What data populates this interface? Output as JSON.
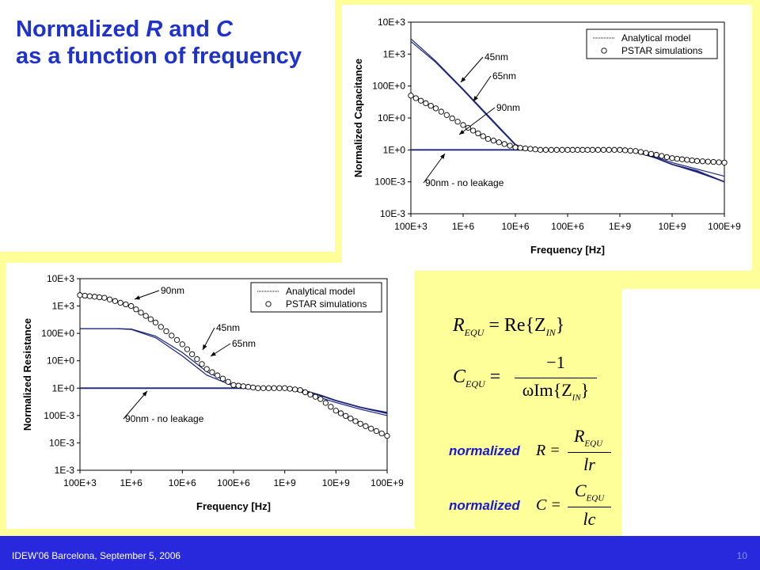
{
  "slide": {
    "title_lines": [
      "Normalized",
      "R",
      "and",
      "C",
      "as a function of frequency"
    ],
    "footer": "IDEW'06 Barcelona, September 5, 2006",
    "page_number": "10",
    "colors": {
      "title": "#1f33cc",
      "footer_bg": "#2828dd",
      "highlight": "#ffff99",
      "curve": "#1a237e"
    }
  },
  "equations": {
    "r_equ": {
      "lhs": "R",
      "lhs_sub": "EQU",
      "rhs": "= Re{Z",
      "rhs_sub": "IN",
      "close": "}"
    },
    "c_equ": {
      "lhs": "C",
      "lhs_sub": "EQU",
      "eq": "=",
      "num": "−1",
      "den": "ωIm{Z",
      "den_sub": "IN",
      "den_close": "}"
    },
    "norm_r": {
      "word": "normalized",
      "var": "R =",
      "num": "R",
      "num_sub": "EQU",
      "den": "lr"
    },
    "norm_c": {
      "word": "normalized",
      "var": "C =",
      "num": "C",
      "num_sub": "EQU",
      "den": "lc"
    }
  },
  "chart_data": [
    {
      "type": "line",
      "id": "capacitance",
      "xlabel": "Frequency [Hz]",
      "ylabel": "Normalized Capacitance",
      "x_scale": "log",
      "y_scale": "log",
      "xlim": [
        100000.0,
        100000000000.0
      ],
      "ylim": [
        0.01,
        10000
      ],
      "x_ticks": [
        100000.0,
        1000000.0,
        10000000.0,
        100000000.0,
        1000000000.0,
        10000000000.0,
        100000000000.0
      ],
      "x_tick_labels": [
        "100E+3",
        "1E+6",
        "10E+6",
        "100E+6",
        "1E+9",
        "10E+9",
        "100E+9"
      ],
      "y_ticks": [
        10000,
        1000,
        100,
        10,
        1,
        0.1,
        0.01
      ],
      "y_tick_labels": [
        "10E+3",
        "1E+3",
        "100E+0",
        "10E+0",
        "1E+0",
        "100E-3",
        "10E-3"
      ],
      "legend": {
        "position": "top-right",
        "entries": [
          "Analytical model",
          "PSTAR simulations"
        ]
      },
      "annotations": [
        "45nm",
        "65nm",
        "90nm",
        "90nm - no leakage"
      ],
      "series": [
        {
          "kind": "line",
          "x": [
            100000.0,
            300000.0,
            1000000.0,
            3000000.0,
            10000000.0,
            15000000.0,
            20000000.0,
            100000000.0,
            1000000000.0,
            2000000000.0,
            5000000000.0,
            10000000000.0,
            30000000000.0,
            100000000000.0
          ],
          "y": [
            3000,
            600,
            80,
            12,
            1.5,
            1.08,
            1.0,
            1.0,
            1.0,
            0.9,
            0.6,
            0.4,
            0.25,
            0.15
          ]
        },
        {
          "kind": "line",
          "x": [
            100000.0,
            300000.0,
            1000000.0,
            3000000.0,
            10000000.0,
            20000000.0,
            100000000.0,
            1000000000.0,
            2000000000.0,
            5000000000.0,
            10000000000.0,
            30000000000.0,
            100000000000.0
          ],
          "y": [
            2500,
            550,
            75,
            11,
            1.4,
            1.0,
            1.0,
            1.0,
            0.85,
            0.55,
            0.35,
            0.2,
            0.1
          ]
        },
        {
          "kind": "line",
          "x": [
            100000.0,
            100000000.0,
            1000000000.0,
            2000000000.0,
            5000000000.0,
            10000000000.0,
            30000000000.0,
            100000000000.0
          ],
          "y": [
            1.0,
            1.0,
            1.0,
            0.9,
            0.55,
            0.35,
            0.22,
            0.1
          ]
        },
        {
          "kind": "markers",
          "x": [
            100000.0,
            300000.0,
            1000000.0,
            3000000.0,
            10000000.0,
            30000000.0,
            100000000.0,
            300000000.0,
            1000000000.0,
            2000000000.0,
            5000000000.0,
            10000000000.0,
            30000000000.0,
            100000000000.0
          ],
          "y": [
            50,
            20,
            6,
            2.2,
            1.2,
            1.0,
            1.0,
            1.0,
            1.0,
            0.92,
            0.7,
            0.55,
            0.45,
            0.4
          ]
        }
      ]
    },
    {
      "type": "line",
      "id": "resistance",
      "xlabel": "Frequency [Hz]",
      "ylabel": "Normalized Resistance",
      "x_scale": "log",
      "y_scale": "log",
      "xlim": [
        100000.0,
        100000000000.0
      ],
      "ylim": [
        0.001,
        10000
      ],
      "x_ticks": [
        100000.0,
        1000000.0,
        10000000.0,
        100000000.0,
        1000000000.0,
        10000000000.0,
        100000000000.0
      ],
      "x_tick_labels": [
        "100E+3",
        "1E+6",
        "10E+6",
        "100E+6",
        "1E+9",
        "10E+9",
        "100E+9"
      ],
      "y_ticks": [
        10000,
        1000,
        100,
        10,
        1,
        0.1,
        0.01,
        0.001
      ],
      "y_tick_labels": [
        "10E+3",
        "1E+3",
        "100E+0",
        "10E+0",
        "1E+0",
        "100E-3",
        "10E-3",
        "1E-3"
      ],
      "legend": {
        "position": "top-right",
        "entries": [
          "Analytical model",
          "PSTAR simulations"
        ]
      },
      "annotations": [
        "90nm",
        "45nm",
        "65nm",
        "90nm - no leakage"
      ],
      "series": [
        {
          "kind": "line",
          "x": [
            100000.0,
            500000.0,
            1000000.0,
            3000000.0,
            10000000.0,
            30000000.0,
            100000000.0,
            300000000.0,
            1000000000.0,
            3000000000.0,
            10000000000.0,
            30000000000.0,
            100000000000.0
          ],
          "y": [
            150,
            150,
            145,
            80,
            20,
            4,
            1.3,
            1.05,
            1.0,
            0.7,
            0.35,
            0.2,
            0.13
          ]
        },
        {
          "kind": "line",
          "x": [
            100000.0,
            500000.0,
            1000000.0,
            3000000.0,
            10000000.0,
            30000000.0,
            100000000.0,
            300000000.0,
            1000000000.0,
            3000000000.0,
            10000000000.0,
            30000000000.0,
            100000000000.0
          ],
          "y": [
            150,
            150,
            140,
            70,
            15,
            3,
            1.2,
            1.05,
            1.0,
            0.6,
            0.3,
            0.17,
            0.1
          ]
        },
        {
          "kind": "line",
          "x": [
            100000.0,
            1000000000.0,
            2000000000.0,
            5000000000.0,
            10000000000.0,
            30000000000.0,
            100000000000.0
          ],
          "y": [
            1.0,
            1.0,
            0.9,
            0.55,
            0.35,
            0.2,
            0.12
          ]
        },
        {
          "kind": "markers",
          "x": [
            100000.0,
            300000.0,
            1000000.0,
            3000000.0,
            10000000.0,
            30000000.0,
            100000000.0,
            300000000.0,
            1000000000.0,
            2000000000.0,
            5000000000.0,
            10000000000.0,
            30000000000.0,
            100000000000.0
          ],
          "y": [
            2500,
            2000,
            1000,
            250,
            40,
            5,
            1.3,
            1.0,
            1.0,
            0.85,
            0.4,
            0.15,
            0.05,
            0.018
          ]
        }
      ]
    }
  ]
}
